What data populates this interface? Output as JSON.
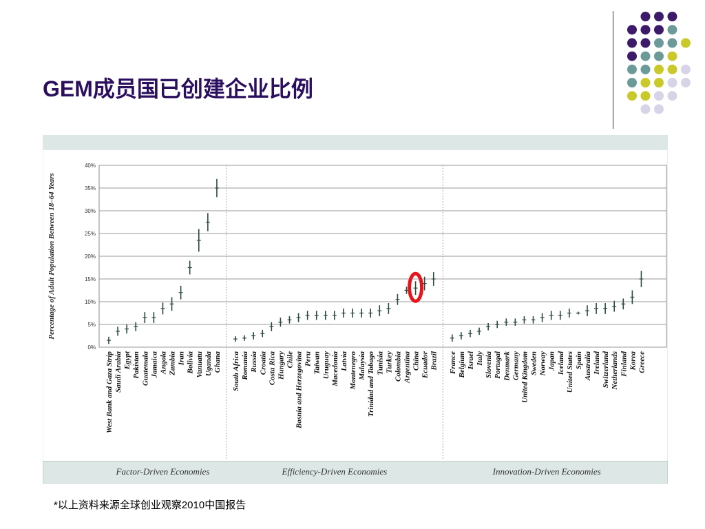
{
  "slide": {
    "title": "GEM成员国已创建企业比例",
    "footnote": "*以上资料来源全球创业观察2010中国报告"
  },
  "decor": {
    "dot_colors": [
      "#3d1a6a",
      "#6b9a99",
      "#c9c92a",
      "#d6d4e6"
    ]
  },
  "chart_data": {
    "type": "scatter",
    "ylabel": "Percentage of Adult Population Between 18–64 Years",
    "ylim": [
      0,
      40
    ],
    "yticks": [
      "0%",
      "5%",
      "10%",
      "15%",
      "20%",
      "25%",
      "30%",
      "35%",
      "40%"
    ],
    "highlight": "China",
    "groups": [
      {
        "name": "Factor-Driven Economies",
        "categories": [
          "West Bank and Gaza Strip",
          "Saudi Arabia",
          "Egypt",
          "Pakistan",
          "Guatemala",
          "Jamaica",
          "Angola",
          "Zambia",
          "Iran",
          "Bolivia",
          "Vanuatu",
          "Uganda",
          "Ghana"
        ],
        "values": [
          1.5,
          3.5,
          4.0,
          4.5,
          6.5,
          6.5,
          8.5,
          9.5,
          12.0,
          17.5,
          23.5,
          27.5,
          35.0
        ],
        "err": [
          0.8,
          1.0,
          1.0,
          1.0,
          1.2,
          1.2,
          1.3,
          1.5,
          1.5,
          1.5,
          2.5,
          2.0,
          2.0
        ]
      },
      {
        "name": "Efficiency-Driven Economies",
        "categories": [
          "South Africa",
          "Romania",
          "Russia",
          "Croatia",
          "Costa Rica",
          "Hungary",
          "Chile",
          "Bosnia and Herzegovina",
          "Peru",
          "Taiwan",
          "Uruguay",
          "Macedonia",
          "Latvia",
          "Montenegro",
          "Malaysia",
          "Trinidad and Tobago",
          "Tunisia",
          "Turkey",
          "Colombia",
          "Argentina",
          "China",
          "Ecuador",
          "Brazil"
        ],
        "values": [
          1.8,
          2.0,
          2.5,
          3.0,
          4.5,
          5.5,
          6.0,
          6.5,
          7.0,
          7.0,
          7.0,
          7.0,
          7.5,
          7.5,
          7.5,
          7.5,
          8.0,
          8.5,
          10.5,
          12.5,
          13.0,
          14.0,
          15.0
        ],
        "err": [
          0.6,
          0.6,
          0.8,
          0.8,
          1.0,
          1.0,
          0.8,
          1.0,
          1.0,
          1.0,
          1.0,
          1.0,
          1.0,
          1.0,
          1.0,
          1.0,
          1.2,
          1.2,
          1.2,
          0.8,
          1.5,
          1.5,
          1.5
        ]
      },
      {
        "name": "Innovation-Driven Economies",
        "categories": [
          "France",
          "Belgium",
          "Israel",
          "Italy",
          "Slovenia",
          "Portugal",
          "Denmark",
          "Germany",
          "United Kingdom",
          "Sweden",
          "Norway",
          "Japan",
          "Iceland",
          "United States",
          "Spain",
          "Australia",
          "Ireland",
          "Switzerland",
          "Netherlands",
          "Finland",
          "Korea",
          "Greece"
        ],
        "values": [
          2.0,
          2.5,
          3.0,
          3.5,
          4.5,
          5.0,
          5.5,
          5.5,
          6.0,
          6.0,
          6.5,
          7.0,
          7.0,
          7.5,
          7.5,
          8.0,
          8.5,
          8.5,
          9.0,
          9.5,
          11.0,
          15.0
        ],
        "err": [
          0.8,
          0.8,
          0.8,
          0.8,
          0.8,
          0.8,
          0.8,
          0.8,
          0.8,
          0.8,
          1.0,
          1.0,
          1.0,
          1.0,
          0.3,
          1.2,
          1.2,
          1.2,
          1.2,
          1.2,
          1.5,
          1.8
        ]
      }
    ]
  }
}
